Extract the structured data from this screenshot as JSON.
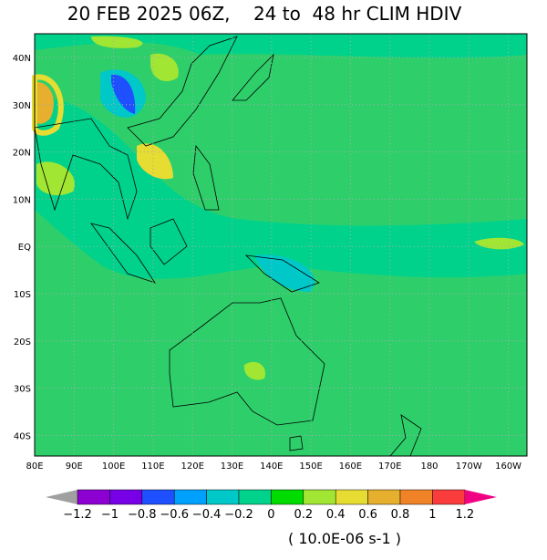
{
  "header": {
    "title": "20 FEB 2025 06Z,    24 to  48 hr CLIM HDIV"
  },
  "map": {
    "lon_labels": [
      "80E",
      "90E",
      "100E",
      "110E",
      "120E",
      "130E",
      "140E",
      "150E",
      "160E",
      "170E",
      "180",
      "170W",
      "160W"
    ],
    "lat_labels": [
      "40N",
      "30N",
      "20N",
      "10N",
      "EQ",
      "10S",
      "20S",
      "30S",
      "40S"
    ]
  },
  "colorbar": {
    "labels": [
      "−1.2",
      "−1",
      "−0.8",
      "−0.6",
      "−0.4",
      "−0.2",
      "0",
      "0.2",
      "0.4",
      "0.6",
      "0.8",
      "1",
      "1.2"
    ],
    "colors": [
      "#a0a0a0",
      "#8c00d2",
      "#7800e6",
      "#1e50ff",
      "#00a0ff",
      "#00c8c8",
      "#00d28c",
      "#00dc00",
      "#a0e632",
      "#e6dc32",
      "#e6af2d",
      "#f08228",
      "#fa3c3c",
      "#f00082"
    ],
    "units": "( 10.0E-06 s-1 )"
  }
}
